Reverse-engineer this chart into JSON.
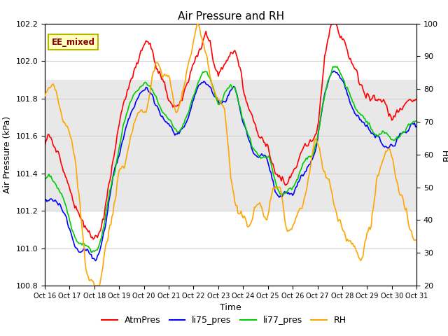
{
  "title": "Air Pressure and RH",
  "xlabel": "Time",
  "ylabel_left": "Air Pressure (kPa)",
  "ylabel_right": "RH",
  "ylim_left": [
    100.8,
    102.2
  ],
  "ylim_right": [
    20,
    100
  ],
  "yticks_left": [
    100.8,
    101.0,
    101.2,
    101.4,
    101.6,
    101.8,
    102.0,
    102.2
  ],
  "yticks_right": [
    20,
    30,
    40,
    50,
    60,
    70,
    80,
    90,
    100
  ],
  "xtick_labels": [
    "Oct 16",
    "Oct 17",
    "Oct 18",
    "Oct 19",
    "Oct 20",
    "Oct 21",
    "Oct 22",
    "Oct 23",
    "Oct 24",
    "Oct 25",
    "Oct 26",
    "Oct 27",
    "Oct 28",
    "Oct 29",
    "Oct 30",
    "Oct 31"
  ],
  "annotation_text": "EE_mixed",
  "colors": {
    "AtmPres": "#ff0000",
    "li75_pres": "#0000ff",
    "li77_pres": "#00cc00",
    "RH": "#ffa500"
  },
  "shaded_band": [
    101.2,
    101.9
  ],
  "n_points": 361,
  "background_color": "#ffffff",
  "grid_color": "#d0d0d0",
  "linewidth": 1.2
}
